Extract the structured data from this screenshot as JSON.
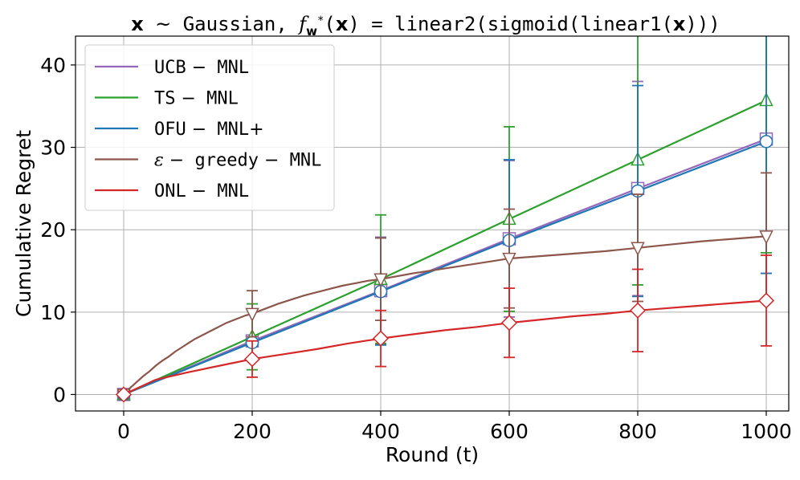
{
  "chart_data": {
    "type": "line",
    "title": "x ~ Gaussian, f_w*(x) = linear2(sigmoid(linear1(x)))",
    "title_parts": {
      "x1": "x",
      "sim": "~",
      "gauss": "Gaussian,",
      "f": "f",
      "w": "w",
      "star": "*",
      "paren_open": "(",
      "x2": "x",
      "eq": ") = ",
      "fn_open": "linear2(sigmoid(linear1(",
      "x3": "x",
      "fn_close": ")))"
    },
    "xlabel": "Round (t)",
    "ylabel": "Cumulative Regret",
    "xlim": [
      -75,
      1035
    ],
    "ylim": [
      -2,
      43.5
    ],
    "xticks": [
      0,
      200,
      400,
      600,
      800,
      1000
    ],
    "yticks": [
      0,
      10,
      20,
      30,
      40
    ],
    "grid": true,
    "legend_position": "upper-left",
    "x": [
      0,
      200,
      400,
      600,
      800,
      1000
    ],
    "series": [
      {
        "name": "UCB-MNL",
        "legend": [
          "UCB",
          "−",
          "MNL"
        ],
        "color": "#9467bd",
        "marker": "square",
        "values": [
          0,
          6.5,
          12.6,
          18.9,
          25.0,
          31.0
        ],
        "err": [
          0,
          0.4,
          6.5,
          9.5,
          13.0,
          16.3
        ]
      },
      {
        "name": "TS-MNL",
        "legend": [
          "TS",
          "−",
          "MNL"
        ],
        "color": "#2ca02c",
        "marker": "triangle-up",
        "values": [
          0,
          7.0,
          14.0,
          21.3,
          28.5,
          35.7
        ],
        "err": [
          0,
          4.0,
          7.8,
          11.2,
          15.2,
          18.5
        ]
      },
      {
        "name": "OFU-MNL+",
        "legend": [
          "OFU",
          "−",
          "MNL",
          "+"
        ],
        "color": "#1f77b4",
        "marker": "circle",
        "values": [
          0,
          6.3,
          12.5,
          18.7,
          24.7,
          30.7
        ],
        "err": [
          0,
          0.4,
          6.5,
          9.8,
          12.8,
          16.0
        ]
      },
      {
        "name": "ε-greedy-MNL",
        "legend": [
          "ε",
          "−",
          "greedy",
          "−",
          "MNL"
        ],
        "color": "#8c564b",
        "marker": "triangle-down",
        "values": [
          0,
          9.8,
          14.0,
          16.5,
          17.8,
          19.2
        ],
        "err": [
          0,
          2.8,
          5.0,
          6.0,
          6.5,
          7.7
        ],
        "curve_x": [
          0,
          10,
          20,
          30,
          40,
          50,
          60,
          70,
          80,
          90,
          100,
          110,
          120,
          130,
          140,
          150,
          160,
          170,
          180,
          190,
          200,
          220,
          240,
          260,
          280,
          300,
          320,
          340,
          360,
          380,
          400,
          450,
          500,
          550,
          600,
          650,
          700,
          750,
          800,
          850,
          900,
          950,
          1000
        ],
        "curve_y": [
          0,
          0.8,
          1.5,
          2.2,
          2.8,
          3.5,
          4.1,
          4.6,
          5.2,
          5.7,
          6.2,
          6.7,
          7.1,
          7.5,
          7.9,
          8.3,
          8.7,
          9.0,
          9.3,
          9.6,
          9.8,
          10.4,
          11.0,
          11.5,
          12.0,
          12.4,
          12.8,
          13.2,
          13.5,
          13.8,
          14.0,
          14.7,
          15.3,
          15.9,
          16.5,
          16.8,
          17.1,
          17.4,
          17.8,
          18.2,
          18.6,
          18.9,
          19.2
        ]
      },
      {
        "name": "ONL-MNL",
        "legend": [
          "ONL",
          "−",
          "MNL"
        ],
        "color": "#d62728",
        "marker": "diamond",
        "values": [
          0,
          4.3,
          6.8,
          8.7,
          10.2,
          11.4
        ],
        "err": [
          0,
          2.2,
          3.4,
          4.2,
          5.0,
          5.5
        ],
        "curve_x": [
          0,
          50,
          100,
          150,
          200,
          250,
          300,
          350,
          400,
          450,
          500,
          550,
          600,
          650,
          700,
          750,
          800,
          850,
          900,
          950,
          1000
        ],
        "curve_y": [
          0,
          1.8,
          2.7,
          3.5,
          4.3,
          4.9,
          5.5,
          6.2,
          6.8,
          7.3,
          7.8,
          8.2,
          8.7,
          9.1,
          9.5,
          9.8,
          10.2,
          10.5,
          10.8,
          11.1,
          11.4
        ]
      }
    ]
  }
}
